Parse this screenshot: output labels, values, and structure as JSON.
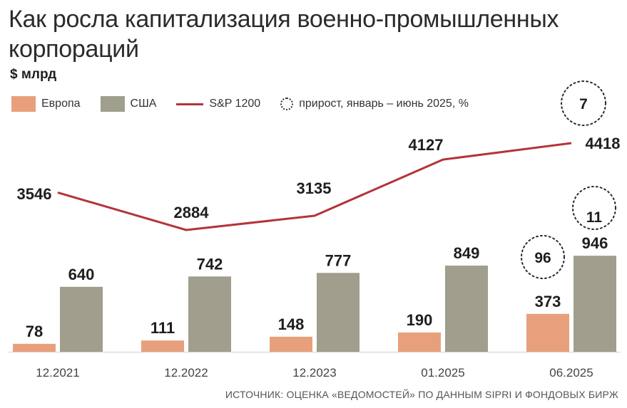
{
  "title": "Как росла капитализация военно-промышленных корпораций",
  "unit": "$ млрд",
  "legend": {
    "europe": "Европа",
    "usa": "США",
    "sp": "S&P 1200",
    "growth": "прирост, январь – июнь 2025, %"
  },
  "source": "ИСТОЧНИК: ОЦЕНКА «ВЕДОМОСТЕЙ» ПО ДАННЫМ SIPRI И ФОНДОВЫХ БИРЖ",
  "colors": {
    "europe": "#e8a07c",
    "usa": "#a09e8c",
    "sp": "#b3343a"
  },
  "chart_data": {
    "type": "bar",
    "categories": [
      "12.2021",
      "12.2022",
      "12.2023",
      "01.2025",
      "06.2025"
    ],
    "series": [
      {
        "name": "Европа",
        "type": "bar",
        "values": [
          78,
          111,
          148,
          190,
          373
        ]
      },
      {
        "name": "США",
        "type": "bar",
        "values": [
          640,
          742,
          777,
          849,
          946
        ]
      },
      {
        "name": "S&P 1200",
        "type": "line",
        "values": [
          3546,
          2884,
          3135,
          4127,
          4418
        ]
      }
    ],
    "growth_annotations": [
      {
        "series": "Европа",
        "category": "06.2025",
        "value": "96"
      },
      {
        "series": "США",
        "category": "06.2025",
        "value": "11"
      },
      {
        "series": "S&P 1200",
        "category": "06.2025",
        "value": "7"
      }
    ],
    "title": "Как росла капитализация военно-промышленных корпораций",
    "ylabel": "$ млрд"
  }
}
